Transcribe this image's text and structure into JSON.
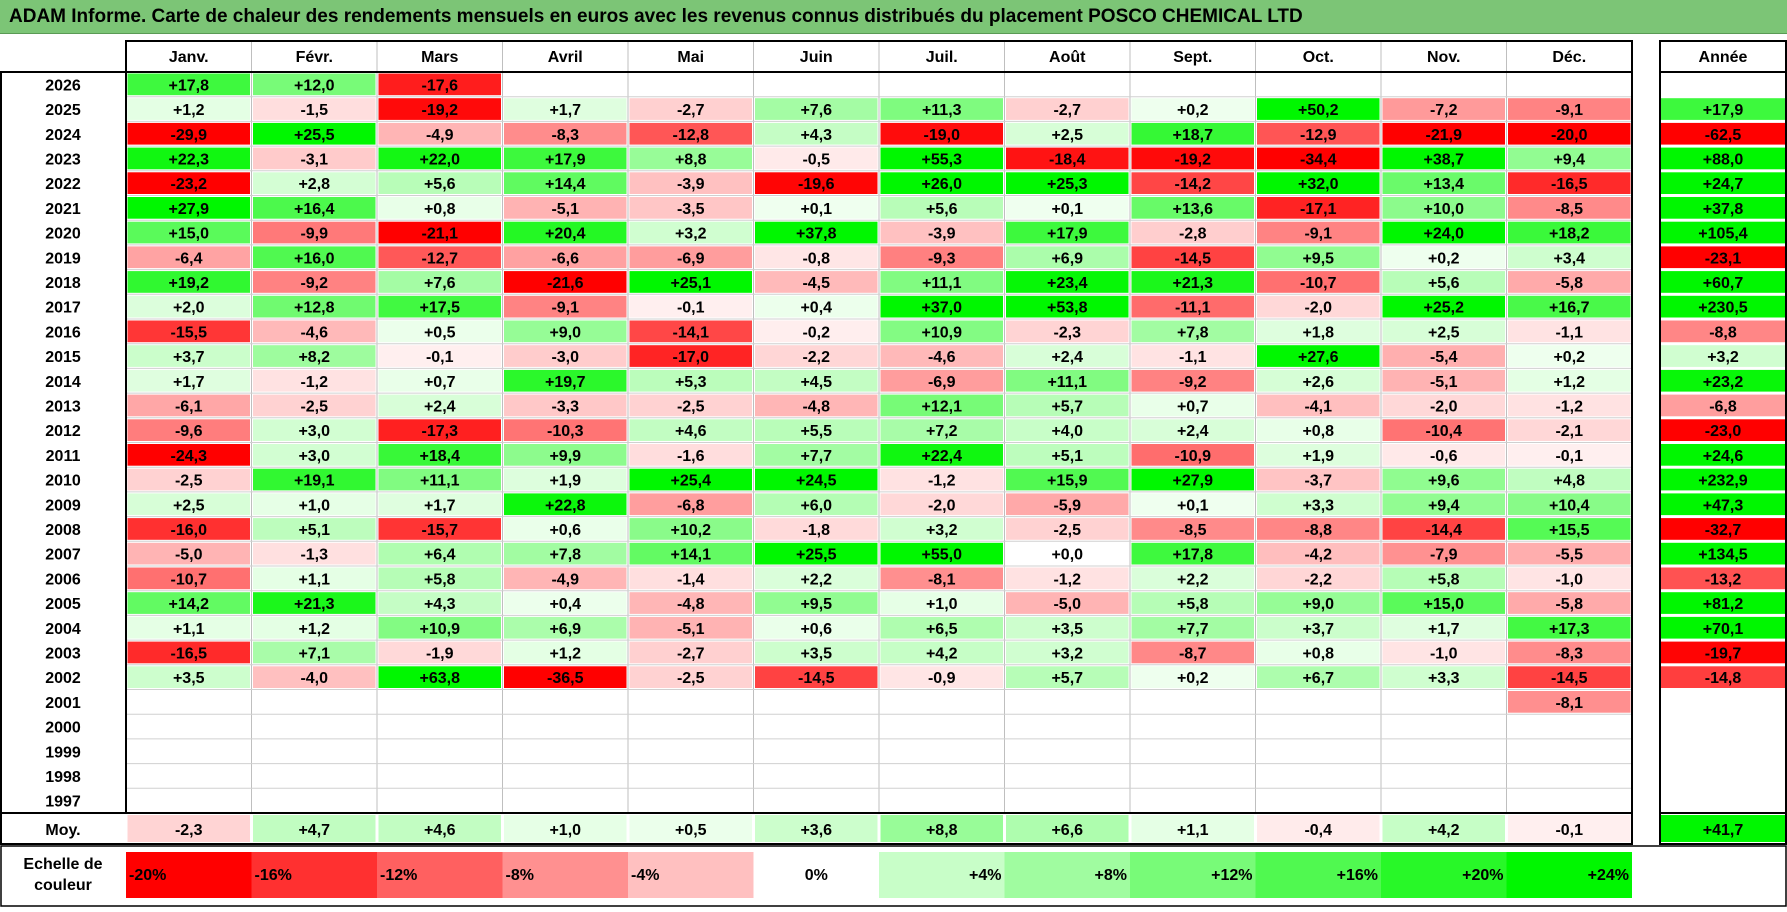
{
  "title": "ADAM Informe. Carte de chaleur des rendements mensuels en euros avec les revenus connus distribués du placement POSCO CHEMICAL LTD",
  "colors": {
    "title_bg": "#7cc576",
    "neg_max": "#ff0000",
    "pos_max": "#00ee00",
    "zero": "#ffffff",
    "grid_line": "#c0c0c0",
    "border": "#000000"
  },
  "chart_data": {
    "type": "heatmap",
    "title": "ADAM Informe. Carte de chaleur des rendements mensuels en euros avec les revenus connus distribués du placement POSCO CHEMICAL LTD",
    "months": [
      "Janv.",
      "Févr.",
      "Mars",
      "Avril",
      "Mai",
      "Juin",
      "Juil.",
      "Août",
      "Sept.",
      "Oct.",
      "Nov.",
      "Déc."
    ],
    "annual_header": "Année",
    "years": [
      "2026",
      "2025",
      "2024",
      "2023",
      "2022",
      "2021",
      "2020",
      "2019",
      "2018",
      "2017",
      "2016",
      "2015",
      "2014",
      "2013",
      "2012",
      "2011",
      "2010",
      "2009",
      "2008",
      "2007",
      "2006",
      "2005",
      "2004",
      "2003",
      "2002",
      "2001",
      "2000",
      "1999",
      "1998",
      "1997"
    ],
    "values": [
      [
        "+17,8",
        "+12,0",
        "-17,6",
        "",
        "",
        "",
        "",
        "",
        "",
        "",
        "",
        ""
      ],
      [
        "+1,2",
        "-1,5",
        "-19,2",
        "+1,7",
        "-2,7",
        "+7,6",
        "+11,3",
        "-2,7",
        "+0,2",
        "+50,2",
        "-7,2",
        "-9,1"
      ],
      [
        "-29,9",
        "+25,5",
        "-4,9",
        "-8,3",
        "-12,8",
        "+4,3",
        "-19,0",
        "+2,5",
        "+18,7",
        "-12,9",
        "-21,9",
        "-20,0"
      ],
      [
        "+22,3",
        "-3,1",
        "+22,0",
        "+17,9",
        "+8,8",
        "-0,5",
        "+55,3",
        "-18,4",
        "-19,2",
        "-34,4",
        "+38,7",
        "+9,4"
      ],
      [
        "-23,2",
        "+2,8",
        "+5,6",
        "+14,4",
        "-3,9",
        "-19,6",
        "+26,0",
        "+25,3",
        "-14,2",
        "+32,0",
        "+13,4",
        "-16,5"
      ],
      [
        "+27,9",
        "+16,4",
        "+0,8",
        "-5,1",
        "-3,5",
        "+0,1",
        "+5,6",
        "+0,1",
        "+13,6",
        "-17,1",
        "+10,0",
        "-8,5"
      ],
      [
        "+15,0",
        "-9,9",
        "-21,1",
        "+20,4",
        "+3,2",
        "+37,8",
        "-3,9",
        "+17,9",
        "-2,8",
        "-9,1",
        "+24,0",
        "+18,2"
      ],
      [
        "-6,4",
        "+16,0",
        "-12,7",
        "-6,6",
        "-6,9",
        "-0,8",
        "-9,3",
        "+6,9",
        "-14,5",
        "+9,5",
        "+0,2",
        "+3,4"
      ],
      [
        "+19,2",
        "-9,2",
        "+7,6",
        "-21,6",
        "+25,1",
        "-4,5",
        "+11,1",
        "+23,4",
        "+21,3",
        "-10,7",
        "+5,6",
        "-5,8"
      ],
      [
        "+2,0",
        "+12,8",
        "+17,5",
        "-9,1",
        "-0,1",
        "+0,4",
        "+37,0",
        "+53,8",
        "-11,1",
        "-2,0",
        "+25,2",
        "+16,7"
      ],
      [
        "-15,5",
        "-4,6",
        "+0,5",
        "+9,0",
        "-14,1",
        "-0,2",
        "+10,9",
        "-2,3",
        "+7,8",
        "+1,8",
        "+2,5",
        "-1,1"
      ],
      [
        "+3,7",
        "+8,2",
        "-0,1",
        "-3,0",
        "-17,0",
        "-2,2",
        "-4,6",
        "+2,4",
        "-1,1",
        "+27,6",
        "-5,4",
        "+0,2"
      ],
      [
        "+1,7",
        "-1,2",
        "+0,7",
        "+19,7",
        "+5,3",
        "+4,5",
        "-6,9",
        "+11,1",
        "-9,2",
        "+2,6",
        "-5,1",
        "+1,2"
      ],
      [
        "-6,1",
        "-2,5",
        "+2,4",
        "-3,3",
        "-2,5",
        "-4,8",
        "+12,1",
        "+5,7",
        "+0,7",
        "-4,1",
        "-2,0",
        "-1,2"
      ],
      [
        "-9,6",
        "+3,0",
        "-17,3",
        "-10,3",
        "+4,6",
        "+5,5",
        "+7,2",
        "+4,0",
        "+2,4",
        "+0,8",
        "-10,4",
        "-2,1"
      ],
      [
        "-24,3",
        "+3,0",
        "+18,4",
        "+9,9",
        "-1,6",
        "+7,7",
        "+22,4",
        "+5,1",
        "-10,9",
        "+1,9",
        "-0,6",
        "-0,1"
      ],
      [
        "-2,5",
        "+19,1",
        "+11,1",
        "+1,9",
        "+25,4",
        "+24,5",
        "-1,2",
        "+15,9",
        "+27,9",
        "-3,7",
        "+9,6",
        "+4,8"
      ],
      [
        "+2,5",
        "+1,0",
        "+1,7",
        "+22,8",
        "-6,8",
        "+6,0",
        "-2,0",
        "-5,9",
        "+0,1",
        "+3,3",
        "+9,4",
        "+10,4"
      ],
      [
        "-16,0",
        "+5,1",
        "-15,7",
        "+0,6",
        "+10,2",
        "-1,8",
        "+3,2",
        "-2,5",
        "-8,5",
        "-8,8",
        "-14,4",
        "+15,5"
      ],
      [
        "-5,0",
        "-1,3",
        "+6,4",
        "+7,8",
        "+14,1",
        "+25,5",
        "+55,0",
        "+0,0",
        "+17,8",
        "-4,2",
        "-7,9",
        "-5,5"
      ],
      [
        "-10,7",
        "+1,1",
        "+5,8",
        "-4,9",
        "-1,4",
        "+2,2",
        "-8,1",
        "-1,2",
        "+2,2",
        "-2,2",
        "+5,8",
        "-1,0"
      ],
      [
        "+14,2",
        "+21,3",
        "+4,3",
        "+0,4",
        "-4,8",
        "+9,5",
        "+1,0",
        "-5,0",
        "+5,8",
        "+9,0",
        "+15,0",
        "-5,8"
      ],
      [
        "+1,1",
        "+1,2",
        "+10,9",
        "+6,9",
        "-5,1",
        "+0,6",
        "+6,5",
        "+3,5",
        "+7,7",
        "+3,7",
        "+1,7",
        "+17,3"
      ],
      [
        "-16,5",
        "+7,1",
        "-1,9",
        "+1,2",
        "-2,7",
        "+3,5",
        "+4,2",
        "+3,2",
        "-8,7",
        "+0,8",
        "-1,0",
        "-8,3"
      ],
      [
        "+3,5",
        "-4,0",
        "+63,8",
        "-36,5",
        "-2,5",
        "-14,5",
        "-0,9",
        "+5,7",
        "+0,2",
        "+6,7",
        "+3,3",
        "-14,5"
      ],
      [
        "",
        "",
        "",
        "",
        "",
        "",
        "",
        "",
        "",
        "",
        "",
        "-8,1"
      ],
      [
        "",
        "",
        "",
        "",
        "",
        "",
        "",
        "",
        "",
        "",
        "",
        ""
      ],
      [
        "",
        "",
        "",
        "",
        "",
        "",
        "",
        "",
        "",
        "",
        "",
        ""
      ],
      [
        "",
        "",
        "",
        "",
        "",
        "",
        "",
        "",
        "",
        "",
        "",
        ""
      ],
      [
        "",
        "",
        "",
        "",
        "",
        "",
        "",
        "",
        "",
        "",
        "",
        ""
      ]
    ],
    "annual": [
      "",
      "+17,9",
      "-62,5",
      "+88,0",
      "+24,7",
      "+37,8",
      "+105,4",
      "-23,1",
      "+60,7",
      "+230,5",
      "-8,8",
      "+3,2",
      "+23,2",
      "-6,8",
      "-23,0",
      "+24,6",
      "+232,9",
      "+47,3",
      "-32,7",
      "+134,5",
      "-13,2",
      "+81,2",
      "+70,1",
      "-19,7",
      "-14,8",
      "",
      "",
      "",
      "",
      ""
    ],
    "average_label": "Moy.",
    "averages": [
      "-2,3",
      "+4,7",
      "+4,6",
      "+1,0",
      "+0,5",
      "+3,6",
      "+8,8",
      "+6,6",
      "+1,1",
      "-0,4",
      "+4,2",
      "-0,1"
    ],
    "annual_average": "+41,7",
    "scale_label": [
      "Echelle de",
      "couleur"
    ],
    "scale": [
      "-20%",
      "-16%",
      "-12%",
      "-8%",
      "-4%",
      "0%",
      "+4%",
      "+8%",
      "+12%",
      "+16%",
      "+20%",
      "+24%"
    ],
    "scale_values": [
      -20,
      -16,
      -12,
      -8,
      -4,
      0,
      4,
      8,
      12,
      16,
      20,
      24
    ]
  }
}
